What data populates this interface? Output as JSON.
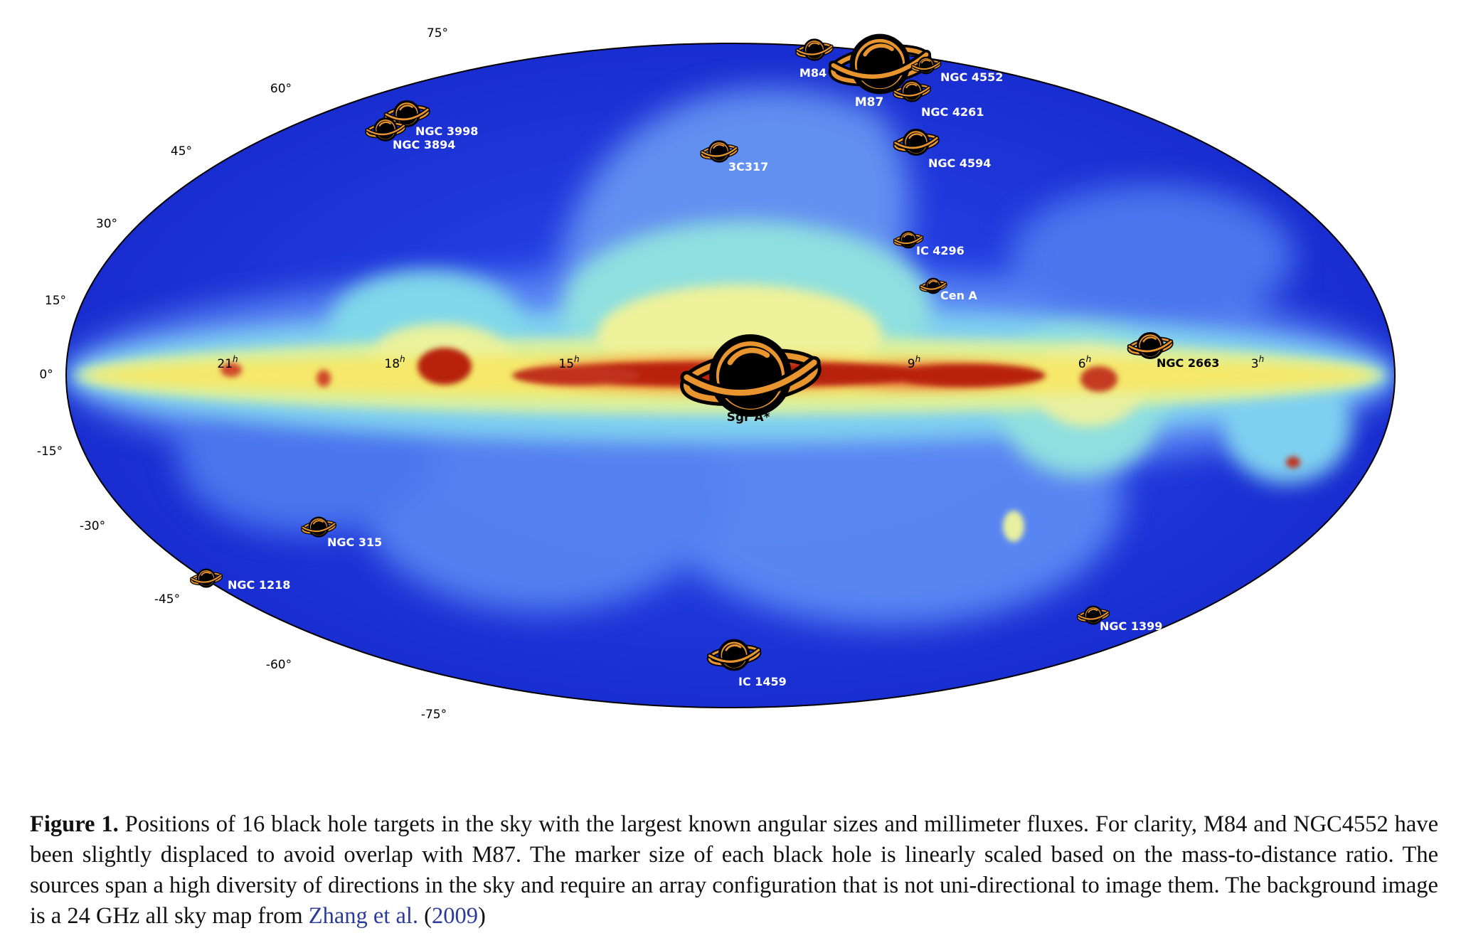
{
  "figure": {
    "latitude_labels": [
      "75°",
      "60°",
      "45°",
      "30°",
      "15°",
      "0°",
      "-15°",
      "-30°",
      "-45°",
      "-60°",
      "-75°"
    ],
    "ra_labels": [
      "21",
      "18",
      "15",
      "9",
      "6",
      "3"
    ],
    "ra_unit": "h",
    "targets": [
      {
        "name": "M84",
        "size": "small",
        "label_color": "#ffffff"
      },
      {
        "name": "M87",
        "size": "large",
        "label_color": "#ffffff"
      },
      {
        "name": "NGC 4552",
        "size": "small",
        "label_color": "#ffffff"
      },
      {
        "name": "NGC 4261",
        "size": "small",
        "label_color": "#ffffff"
      },
      {
        "name": "NGC 4594",
        "size": "medium",
        "label_color": "#ffffff"
      },
      {
        "name": "NGC 3998",
        "size": "medium",
        "label_color": "#ffffff"
      },
      {
        "name": "NGC 3894",
        "size": "small",
        "label_color": "#ffffff"
      },
      {
        "name": "3C317",
        "size": "small",
        "label_color": "#ffffff"
      },
      {
        "name": "IC 4296",
        "size": "small",
        "label_color": "#ffffff"
      },
      {
        "name": "Cen A",
        "size": "small",
        "label_color": "#ffffff"
      },
      {
        "name": "NGC 2663",
        "size": "medium",
        "label_color": "#000000"
      },
      {
        "name": "Sgr A*",
        "size": "huge",
        "label_color": "#000000"
      },
      {
        "name": "NGC 315",
        "size": "small",
        "label_color": "#ffffff"
      },
      {
        "name": "NGC 1218",
        "size": "small",
        "label_color": "#ffffff"
      },
      {
        "name": "NGC 1399",
        "size": "small",
        "label_color": "#ffffff"
      },
      {
        "name": "IC 1459",
        "size": "medium",
        "label_color": "#ffffff"
      }
    ],
    "colors": {
      "sky_background": "#1a2fd8",
      "galactic_plane_core": "#b0200d",
      "marker_fill": "#e8952f",
      "marker_body": "#000000"
    }
  },
  "caption": {
    "label": "Figure 1.",
    "text": " Positions of 16 black hole targets in the sky with the largest known angular sizes and millimeter fluxes. For clarity, M84 and NGC4552 have been slightly displaced to avoid overlap with M87. The marker size of each black hole is linearly scaled based on the mass-to-distance ratio. The sources span a high diversity of directions in the sky and require an array configuration that is not uni-directional to image them. The background image is a 24 GHz all sky map from ",
    "cite_author": "Zhang et al.",
    "cite_open": " (",
    "cite_year": "2009",
    "cite_close": ")"
  }
}
